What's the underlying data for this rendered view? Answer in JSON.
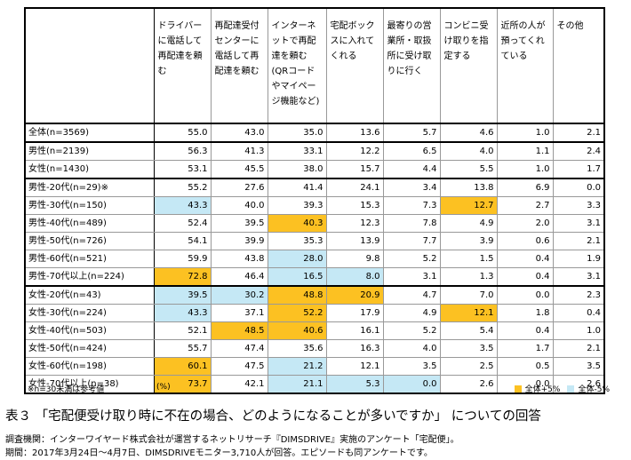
{
  "chart_data": {
    "type": "table",
    "columns": [
      "ドライバーに電話して再配達を頼む",
      "再配達受付センターに電話して再配達を頼む",
      "インターネットで再配達を頼む(QRコードやマイページ機能など)",
      "宅配ボックスに入れてくれる",
      "最寄りの営業所・取扱所に受け取りに行く",
      "コンビニ受け取りを指定する",
      "近所の人が預ってくれている",
      "その他"
    ],
    "rows": [
      {
        "label": "全体(n=3569)",
        "values": [
          "55.0",
          "43.0",
          "35.0",
          "13.6",
          "5.7",
          "4.6",
          "1.0",
          "2.1"
        ],
        "hl": [
          "",
          "",
          "",
          "",
          "",
          "",
          "",
          ""
        ],
        "grp": true
      },
      {
        "label": "男性(n=2139)",
        "values": [
          "56.3",
          "41.3",
          "33.1",
          "12.2",
          "6.5",
          "4.0",
          "1.1",
          "2.4"
        ],
        "hl": [
          "",
          "",
          "",
          "",
          "",
          "",
          "",
          ""
        ],
        "grp": true
      },
      {
        "label": "女性(n=1430)",
        "values": [
          "53.1",
          "45.5",
          "38.0",
          "15.7",
          "4.4",
          "5.5",
          "1.0",
          "1.7"
        ],
        "hl": [
          "",
          "",
          "",
          "",
          "",
          "",
          "",
          ""
        ],
        "grp": false
      },
      {
        "label": "男性-20代(n=29)※",
        "values": [
          "55.2",
          "27.6",
          "41.4",
          "24.1",
          "3.4",
          "13.8",
          "6.9",
          "0.0"
        ],
        "hl": [
          "",
          "",
          "",
          "",
          "",
          "",
          "",
          ""
        ],
        "grp": true
      },
      {
        "label": "男性-30代(n=150)",
        "values": [
          "43.3",
          "40.0",
          "39.3",
          "15.3",
          "7.3",
          "12.7",
          "2.7",
          "3.3"
        ],
        "hl": [
          "b",
          "",
          "",
          "",
          "",
          "o",
          "",
          ""
        ],
        "grp": false
      },
      {
        "label": "男性-40代(n=489)",
        "values": [
          "52.4",
          "39.5",
          "40.3",
          "12.3",
          "7.8",
          "4.9",
          "2.0",
          "3.1"
        ],
        "hl": [
          "",
          "",
          "o",
          "",
          "",
          "",
          "",
          ""
        ],
        "grp": false
      },
      {
        "label": "男性-50代(n=726)",
        "values": [
          "54.1",
          "39.9",
          "35.3",
          "13.9",
          "7.7",
          "3.9",
          "0.6",
          "2.1"
        ],
        "hl": [
          "",
          "",
          "",
          "",
          "",
          "",
          "",
          ""
        ],
        "grp": false
      },
      {
        "label": "男性-60代(n=521)",
        "values": [
          "59.9",
          "43.8",
          "28.0",
          "9.8",
          "5.2",
          "1.5",
          "0.4",
          "1.9"
        ],
        "hl": [
          "",
          "",
          "b",
          "",
          "",
          "",
          "",
          ""
        ],
        "grp": false
      },
      {
        "label": "男性-70代以上(n=224)",
        "values": [
          "72.8",
          "46.4",
          "16.5",
          "8.0",
          "3.1",
          "1.3",
          "0.4",
          "3.1"
        ],
        "hl": [
          "o",
          "",
          "b",
          "b",
          "",
          "",
          "",
          ""
        ],
        "grp": false
      },
      {
        "label": "女性-20代(n=43)",
        "values": [
          "39.5",
          "30.2",
          "48.8",
          "20.9",
          "4.7",
          "7.0",
          "0.0",
          "2.3"
        ],
        "hl": [
          "b",
          "b",
          "o",
          "o",
          "",
          "",
          "",
          ""
        ],
        "grp": true
      },
      {
        "label": "女性-30代(n=224)",
        "values": [
          "43.3",
          "37.1",
          "52.2",
          "17.9",
          "4.9",
          "12.1",
          "1.8",
          "0.4"
        ],
        "hl": [
          "b",
          "",
          "o",
          "",
          "",
          "o",
          "",
          ""
        ],
        "grp": false
      },
      {
        "label": "女性-40代(n=503)",
        "values": [
          "52.1",
          "48.5",
          "40.6",
          "16.1",
          "5.2",
          "5.4",
          "0.4",
          "1.0"
        ],
        "hl": [
          "",
          "o",
          "o",
          "",
          "",
          "",
          "",
          ""
        ],
        "grp": false
      },
      {
        "label": "女性-50代(n=424)",
        "values": [
          "55.7",
          "47.4",
          "35.6",
          "16.3",
          "4.0",
          "3.5",
          "1.7",
          "2.1"
        ],
        "hl": [
          "",
          "",
          "",
          "",
          "",
          "",
          "",
          ""
        ],
        "grp": false
      },
      {
        "label": "女性-60代(n=198)",
        "values": [
          "60.1",
          "47.5",
          "21.2",
          "12.1",
          "3.5",
          "2.5",
          "0.5",
          "3.5"
        ],
        "hl": [
          "o",
          "",
          "b",
          "",
          "",
          "",
          "",
          ""
        ],
        "grp": false
      },
      {
        "label": "女性-70代以上(n=38)",
        "values": [
          "73.7",
          "42.1",
          "21.1",
          "5.3",
          "0.0",
          "2.6",
          "0.0",
          "2.6"
        ],
        "hl": [
          "o",
          "",
          "b",
          "b",
          "b",
          "",
          "",
          ""
        ],
        "grp": false
      }
    ],
    "note": "※n=30未満は参考値",
    "unit": "(%)",
    "legend": [
      {
        "label": "全体+5%",
        "color": "#fcc122"
      },
      {
        "label": "全体-5%",
        "color": "#c5e8f5"
      }
    ],
    "title": "表３ 「宅配便受け取り時に不在の場合、どのようになることが多いですか」 についての回答"
  },
  "source_line1": "調査機関：インターワイヤード株式会社が運営するネットリサーチ『DIMSDRIVE』実施のアンケート「宅配便」。",
  "source_line2": "期間：2017年3月24日～4月7日、DIMSDRIVEモニター3,710人が回答。エピソードも同アンケートです。"
}
